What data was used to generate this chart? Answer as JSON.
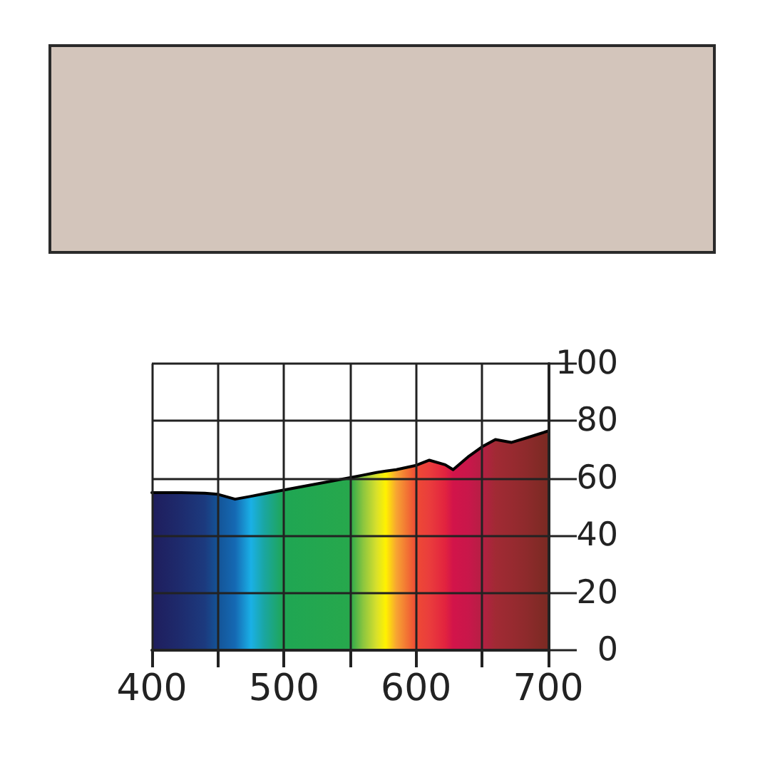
{
  "chart_data": {
    "type": "area",
    "x": [
      400,
      420,
      440,
      450,
      463,
      475,
      485,
      500,
      550,
      560,
      570,
      577,
      585,
      600,
      610,
      622,
      628,
      640,
      650,
      660,
      672,
      683,
      700
    ],
    "series": [
      {
        "color": "#000000",
        "colors": [
          "#1f1d5c",
          "#1e2a6c",
          "#1c3a7e",
          "#145497",
          "#1569b3",
          "#1ab0e6",
          "#1aa6a2",
          "#1fa653",
          "#27a84c",
          "#8cc63f",
          "#d8e02c",
          "#fff200",
          "#f7a432",
          "#ee4a35",
          "#ea3d3c",
          "#e2233f",
          "#d2144a",
          "#c8174a",
          "#b51f44",
          "#a12a34",
          "#982a30",
          "#8e2a2c",
          "#7a2a22"
        ],
        "values": [
          55,
          55,
          54.8,
          54.4,
          52.7,
          53.7,
          54.6,
          55.9,
          60.2,
          61.1,
          62,
          62.5,
          63,
          64.5,
          66.3,
          64.7,
          63,
          67.7,
          71,
          73.5,
          72.5,
          74,
          76.5
        ]
      }
    ],
    "xlim": [
      400,
      700
    ],
    "xticks": [
      400,
      {
        "value": 450,
        "label": null
      },
      500,
      {
        "value": 550,
        "label": null
      },
      600,
      {
        "value": 650,
        "label": null
      },
      700
    ],
    "ylim": [
      0,
      100
    ],
    "yticks": [
      0,
      20,
      40,
      60,
      80,
      100
    ],
    "grid": true,
    "marker": "none",
    "line_style": "solid"
  }
}
